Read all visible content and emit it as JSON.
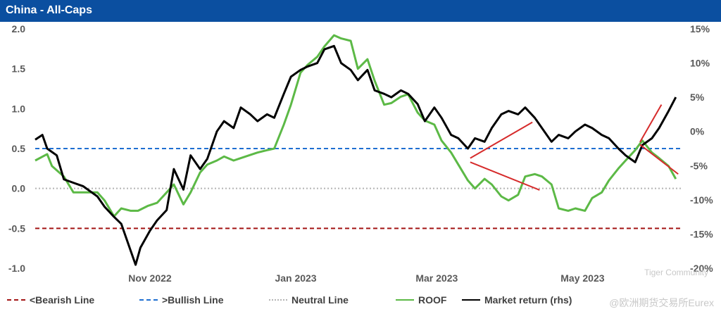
{
  "title": "China - All-Caps",
  "watermark": {
    "line1": "Tiger Community",
    "line2": "@欧洲期货交易所Eurex"
  },
  "legend": [
    {
      "name": "<Bearish Line",
      "color": "#a31515",
      "style": "dashed"
    },
    {
      "name": ">Bullish Line",
      "color": "#1f6fd1",
      "style": "dashed"
    },
    {
      "name": "Neutral Line",
      "color": "#b4b4b4",
      "style": "dotted"
    },
    {
      "name": "ROOF",
      "color": "#5cb946",
      "style": "solid"
    },
    {
      "name": "Market return (rhs)",
      "color": "#000000",
      "style": "solid"
    }
  ],
  "chart_data": {
    "type": "line",
    "title": "China - All-Caps",
    "x_ticks": [
      "Nov 2022",
      "Jan 2023",
      "Mar 2023",
      "May 2023"
    ],
    "y_left": {
      "ticks": [
        "2.0",
        "1.5",
        "1.0",
        "0.5",
        "0.0",
        "-0.5",
        "-1.0"
      ],
      "range": [
        -1.0,
        2.0
      ]
    },
    "y_right": {
      "ticks": [
        "15%",
        "10%",
        "5%",
        "0%",
        "-5%",
        "-10%",
        "-15%",
        "-20%"
      ],
      "range": [
        -20,
        15
      ]
    },
    "reference_lines": [
      {
        "name": "<Bearish Line",
        "value": -0.5
      },
      {
        "name": ">Bullish Line",
        "value": 0.5
      },
      {
        "name": "Neutral Line",
        "value": 0.0
      }
    ],
    "x_range": [
      "2022-09-28",
      "2023-06-26"
    ],
    "series": [
      {
        "name": "ROOF",
        "axis": "left",
        "color": "#5cb946",
        "points": [
          [
            "2022-09-28",
            0.35
          ],
          [
            "2022-10-03",
            0.43
          ],
          [
            "2022-10-05",
            0.28
          ],
          [
            "2022-10-10",
            0.15
          ],
          [
            "2022-10-14",
            -0.05
          ],
          [
            "2022-10-18",
            -0.05
          ],
          [
            "2022-10-24",
            -0.05
          ],
          [
            "2022-10-27",
            -0.15
          ],
          [
            "2022-10-31",
            -0.35
          ],
          [
            "2022-11-03",
            -0.25
          ],
          [
            "2022-11-07",
            -0.28
          ],
          [
            "2022-11-10",
            -0.28
          ],
          [
            "2022-11-14",
            -0.22
          ],
          [
            "2022-11-18",
            -0.18
          ],
          [
            "2022-11-22",
            -0.05
          ],
          [
            "2022-11-25",
            0.05
          ],
          [
            "2022-11-29",
            -0.2
          ],
          [
            "2022-12-02",
            -0.05
          ],
          [
            "2022-12-06",
            0.2
          ],
          [
            "2022-12-09",
            0.3
          ],
          [
            "2022-12-13",
            0.35
          ],
          [
            "2022-12-16",
            0.4
          ],
          [
            "2022-12-20",
            0.35
          ],
          [
            "2022-12-23",
            0.38
          ],
          [
            "2022-12-27",
            0.42
          ],
          [
            "2022-12-30",
            0.45
          ],
          [
            "2023-01-03",
            0.48
          ],
          [
            "2023-01-06",
            0.5
          ],
          [
            "2023-01-10",
            0.8
          ],
          [
            "2023-01-13",
            1.05
          ],
          [
            "2023-01-17",
            1.45
          ],
          [
            "2023-01-20",
            1.55
          ],
          [
            "2023-01-24",
            1.65
          ],
          [
            "2023-01-27",
            1.78
          ],
          [
            "2023-01-31",
            1.92
          ],
          [
            "2023-02-03",
            1.88
          ],
          [
            "2023-02-07",
            1.85
          ],
          [
            "2023-02-10",
            1.5
          ],
          [
            "2023-02-14",
            1.62
          ],
          [
            "2023-02-17",
            1.35
          ],
          [
            "2023-02-21",
            1.05
          ],
          [
            "2023-02-24",
            1.07
          ],
          [
            "2023-02-28",
            1.15
          ],
          [
            "2023-03-03",
            1.18
          ],
          [
            "2023-03-07",
            0.95
          ],
          [
            "2023-03-10",
            0.85
          ],
          [
            "2023-03-14",
            0.8
          ],
          [
            "2023-03-17",
            0.6
          ],
          [
            "2023-03-21",
            0.45
          ],
          [
            "2023-03-24",
            0.3
          ],
          [
            "2023-03-28",
            0.1
          ],
          [
            "2023-03-31",
            0.0
          ],
          [
            "2023-04-04",
            0.12
          ],
          [
            "2023-04-07",
            0.05
          ],
          [
            "2023-04-11",
            -0.1
          ],
          [
            "2023-04-14",
            -0.15
          ],
          [
            "2023-04-18",
            -0.08
          ],
          [
            "2023-04-21",
            0.15
          ],
          [
            "2023-04-25",
            0.18
          ],
          [
            "2023-04-28",
            0.15
          ],
          [
            "2023-05-02",
            0.05
          ],
          [
            "2023-05-05",
            -0.25
          ],
          [
            "2023-05-09",
            -0.28
          ],
          [
            "2023-05-12",
            -0.25
          ],
          [
            "2023-05-16",
            -0.28
          ],
          [
            "2023-05-19",
            -0.12
          ],
          [
            "2023-05-23",
            -0.05
          ],
          [
            "2023-05-26",
            0.1
          ],
          [
            "2023-05-30",
            0.25
          ],
          [
            "2023-06-02",
            0.35
          ],
          [
            "2023-06-06",
            0.48
          ],
          [
            "2023-06-09",
            0.6
          ],
          [
            "2023-06-13",
            0.45
          ],
          [
            "2023-06-16",
            0.38
          ],
          [
            "2023-06-20",
            0.28
          ],
          [
            "2023-06-23",
            0.12
          ]
        ]
      },
      {
        "name": "Market return (rhs)",
        "axis": "right",
        "color": "#000000",
        "points": [
          [
            "2022-09-28",
            -1.2
          ],
          [
            "2022-10-01",
            -0.5
          ],
          [
            "2022-10-03",
            -2.5
          ],
          [
            "2022-10-05",
            -3.0
          ],
          [
            "2022-10-07",
            -3.5
          ],
          [
            "2022-10-10",
            -7.0
          ],
          [
            "2022-10-14",
            -7.5
          ],
          [
            "2022-10-18",
            -8.0
          ],
          [
            "2022-10-24",
            -9.5
          ],
          [
            "2022-10-27",
            -11.0
          ],
          [
            "2022-10-31",
            -12.5
          ],
          [
            "2022-11-03",
            -13.5
          ],
          [
            "2022-11-07",
            -17.5
          ],
          [
            "2022-11-09",
            -19.5
          ],
          [
            "2022-11-11",
            -17.0
          ],
          [
            "2022-11-15",
            -14.5
          ],
          [
            "2022-11-18",
            -13.0
          ],
          [
            "2022-11-22",
            -11.5
          ],
          [
            "2022-11-25",
            -5.5
          ],
          [
            "2022-11-29",
            -8.5
          ],
          [
            "2022-12-02",
            -3.5
          ],
          [
            "2022-12-06",
            -5.5
          ],
          [
            "2022-12-09",
            -4.0
          ],
          [
            "2022-12-13",
            0.0
          ],
          [
            "2022-12-16",
            1.5
          ],
          [
            "2022-12-20",
            0.5
          ],
          [
            "2022-12-23",
            3.5
          ],
          [
            "2022-12-27",
            2.5
          ],
          [
            "2022-12-30",
            1.5
          ],
          [
            "2023-01-03",
            2.5
          ],
          [
            "2023-01-06",
            2.0
          ],
          [
            "2023-01-10",
            5.5
          ],
          [
            "2023-01-13",
            8.0
          ],
          [
            "2023-01-17",
            9.0
          ],
          [
            "2023-01-20",
            9.5
          ],
          [
            "2023-01-24",
            10.0
          ],
          [
            "2023-01-27",
            12.0
          ],
          [
            "2023-01-31",
            12.5
          ],
          [
            "2023-02-03",
            10.0
          ],
          [
            "2023-02-07",
            9.0
          ],
          [
            "2023-02-10",
            7.5
          ],
          [
            "2023-02-14",
            9.0
          ],
          [
            "2023-02-17",
            6.0
          ],
          [
            "2023-02-21",
            5.5
          ],
          [
            "2023-02-24",
            5.0
          ],
          [
            "2023-02-28",
            6.0
          ],
          [
            "2023-03-03",
            5.5
          ],
          [
            "2023-03-07",
            4.0
          ],
          [
            "2023-03-10",
            1.5
          ],
          [
            "2023-03-14",
            3.5
          ],
          [
            "2023-03-17",
            2.0
          ],
          [
            "2023-03-21",
            -0.5
          ],
          [
            "2023-03-24",
            -1.0
          ],
          [
            "2023-03-28",
            -2.5
          ],
          [
            "2023-03-31",
            -1.0
          ],
          [
            "2023-04-04",
            -1.5
          ],
          [
            "2023-04-07",
            0.5
          ],
          [
            "2023-04-11",
            2.5
          ],
          [
            "2023-04-14",
            3.0
          ],
          [
            "2023-04-18",
            2.5
          ],
          [
            "2023-04-21",
            3.5
          ],
          [
            "2023-04-25",
            2.0
          ],
          [
            "2023-04-28",
            0.5
          ],
          [
            "2023-05-02",
            -1.5
          ],
          [
            "2023-05-05",
            -0.5
          ],
          [
            "2023-05-09",
            -1.0
          ],
          [
            "2023-05-12",
            0.0
          ],
          [
            "2023-05-16",
            1.0
          ],
          [
            "2023-05-19",
            0.5
          ],
          [
            "2023-05-23",
            -0.5
          ],
          [
            "2023-05-26",
            -1.0
          ],
          [
            "2023-05-30",
            -2.5
          ],
          [
            "2023-06-02",
            -3.5
          ],
          [
            "2023-06-06",
            -4.5
          ],
          [
            "2023-06-09",
            -2.0
          ],
          [
            "2023-06-13",
            -1.0
          ],
          [
            "2023-06-16",
            0.5
          ],
          [
            "2023-06-20",
            3.0
          ],
          [
            "2023-06-23",
            5.0
          ]
        ]
      }
    ]
  }
}
